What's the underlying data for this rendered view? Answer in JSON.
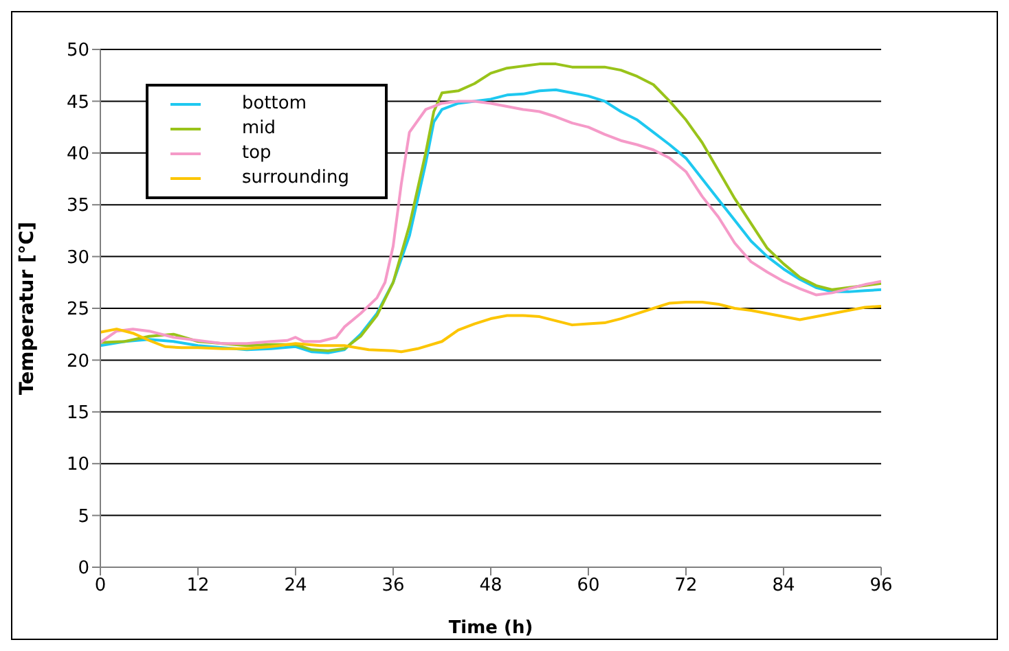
{
  "chart_data": {
    "type": "line",
    "xlabel": "Time (h)",
    "ylabel": "Temperatur  [°C]",
    "xlim": [
      0,
      96
    ],
    "xticks": [
      0,
      12,
      24,
      36,
      48,
      60,
      72,
      84,
      96
    ],
    "ylim": [
      0,
      50
    ],
    "yticks": [
      0,
      5,
      10,
      15,
      20,
      25,
      30,
      35,
      40,
      45,
      50
    ],
    "grid": "y",
    "legend": "top left",
    "marker": "none",
    "line_style": "solid",
    "series": [
      {
        "name": "bottom",
        "color": "#1ec8f0",
        "x": [
          0,
          3,
          6,
          9,
          12,
          15,
          18,
          21,
          24,
          26,
          28,
          30,
          32,
          34,
          36,
          38,
          40,
          41,
          42,
          44,
          46,
          48,
          50,
          52,
          54,
          56,
          58,
          60,
          62,
          64,
          66,
          68,
          70,
          72,
          74,
          76,
          78,
          80,
          82,
          84,
          86,
          88,
          90,
          92,
          94,
          96
        ],
        "values": [
          21.4,
          21.8,
          22,
          21.8,
          21.4,
          21.2,
          21,
          21.1,
          21.3,
          20.8,
          20.7,
          21,
          22.5,
          24.5,
          27.5,
          32,
          39,
          43,
          44.2,
          44.8,
          45,
          45.2,
          45.6,
          45.7,
          46,
          46.1,
          45.8,
          45.5,
          45,
          44,
          43.2,
          42,
          40.8,
          39.5,
          37.5,
          35.5,
          33.5,
          31.5,
          30,
          28.8,
          27.8,
          27,
          26.6,
          26.6,
          26.7,
          26.8
        ]
      },
      {
        "name": "mid",
        "color": "#99c31a",
        "x": [
          0,
          3,
          6,
          9,
          12,
          15,
          18,
          21,
          24,
          26,
          28,
          30,
          32,
          34,
          36,
          38,
          40,
          41,
          42,
          44,
          46,
          48,
          50,
          52,
          54,
          56,
          58,
          60,
          62,
          64,
          66,
          68,
          70,
          72,
          74,
          76,
          78,
          80,
          82,
          84,
          86,
          88,
          90,
          92,
          94,
          96
        ],
        "values": [
          21.7,
          21.8,
          22.3,
          22.5,
          21.8,
          21.6,
          21.4,
          21.5,
          21.5,
          21,
          20.9,
          21.1,
          22.3,
          24.3,
          27.5,
          33,
          40,
          44,
          45.8,
          46,
          46.7,
          47.7,
          48.2,
          48.4,
          48.6,
          48.6,
          48.3,
          48.3,
          48.3,
          48,
          47.4,
          46.6,
          45,
          43.2,
          41,
          38.3,
          35.6,
          33.2,
          30.8,
          29.3,
          28,
          27.2,
          26.8,
          27,
          27.2,
          27.4
        ]
      },
      {
        "name": "top",
        "color": "#f59ac8",
        "x": [
          0,
          2,
          4,
          6,
          9,
          12,
          15,
          18,
          21,
          23,
          24,
          25,
          27,
          29,
          30,
          32,
          34,
          35,
          36,
          37,
          38,
          40,
          42,
          44,
          46,
          48,
          50,
          52,
          54,
          56,
          58,
          60,
          62,
          64,
          66,
          68,
          70,
          72,
          74,
          76,
          78,
          80,
          82,
          84,
          86,
          88,
          90,
          92,
          94,
          96
        ],
        "values": [
          21.7,
          22.8,
          23,
          22.8,
          22.2,
          21.9,
          21.6,
          21.6,
          21.8,
          21.9,
          22.2,
          21.8,
          21.8,
          22.2,
          23.2,
          24.5,
          26,
          27.5,
          31,
          37,
          42,
          44.2,
          44.8,
          45,
          45,
          44.8,
          44.5,
          44.2,
          44,
          43.5,
          42.9,
          42.5,
          41.8,
          41.2,
          40.8,
          40.3,
          39.5,
          38.2,
          35.8,
          33.8,
          31.3,
          29.5,
          28.5,
          27.6,
          26.9,
          26.3,
          26.5,
          26.9,
          27.3,
          27.6
        ]
      },
      {
        "name": "surrounding",
        "color": "#fcc500",
        "x": [
          0,
          2,
          4,
          6,
          8,
          10,
          12,
          15,
          18,
          21,
          24,
          27,
          30,
          33,
          36,
          37,
          39,
          42,
          44,
          46,
          48,
          50,
          52,
          54,
          56,
          58,
          60,
          62,
          64,
          66,
          68,
          70,
          72,
          74,
          76,
          78,
          80,
          82,
          84,
          86,
          88,
          90,
          92,
          94,
          96
        ],
        "values": [
          22.7,
          23,
          22.6,
          21.9,
          21.3,
          21.2,
          21.2,
          21.1,
          21.1,
          21.3,
          21.6,
          21.4,
          21.4,
          21,
          20.9,
          20.8,
          21.1,
          21.8,
          22.9,
          23.5,
          24,
          24.3,
          24.3,
          24.2,
          23.8,
          23.4,
          23.5,
          23.6,
          24,
          24.5,
          25,
          25.5,
          25.6,
          25.6,
          25.4,
          25,
          24.8,
          24.5,
          24.2,
          23.9,
          24.2,
          24.5,
          24.8,
          25.1,
          25.2
        ]
      }
    ]
  }
}
